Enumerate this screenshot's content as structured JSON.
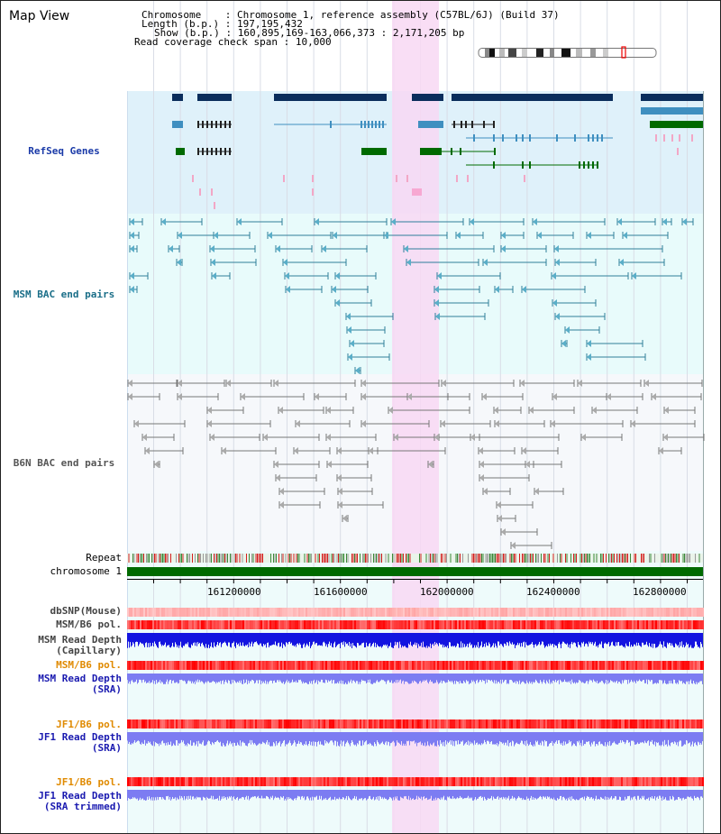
{
  "title": "Map View",
  "info": {
    "chromosome_key": "Chromosome",
    "chromosome_value": "Chromosome 1, reference assembly (C57BL/6J) (Build 37)",
    "length_key": "Length (b.p.)",
    "length_value": "197,195,432",
    "show_key": "Show (b.p.)",
    "show_value": "160,895,169-163,066,373 : 2,171,205 bp",
    "coverage_key": "Read coverage check span",
    "coverage_value": "10,000"
  },
  "tracks": {
    "refseq": "RefSeq Genes",
    "msm_bac": "MSM BAC end pairs",
    "b6n_bac": "B6N BAC end pairs",
    "repeat": "Repeat",
    "chromosome": "chromosome 1",
    "dbsnp": "dbSNP(Mouse)",
    "msm_b6_pol": "MSM/B6 pol.",
    "msm_depth_cap_1": "MSM Read Depth",
    "msm_depth_cap_2": "(Capillary)",
    "msm_b6_pol_2": "MSM/B6 pol.",
    "msm_depth_sra_1": "MSM Read Depth",
    "msm_depth_sra_2": "(SRA)",
    "jf1_b6_pol": "JF1/B6 pol.",
    "jf1_depth_sra_1": "JF1 Read Depth",
    "jf1_depth_sra_2": "(SRA)",
    "jf1_b6_pol_2": "JF1/B6 pol.",
    "jf1_depth_trim_1": "JF1 Read Depth",
    "jf1_depth_trim_2": "(SRA trimmed)"
  },
  "axis_ticks": [
    "161200000",
    "161600000",
    "162000000",
    "162400000",
    "162800000"
  ],
  "colors": {
    "refseq_bg": "#dff1fa",
    "msm_bac_bg": "#e8fbfb",
    "b6n_bg": "#f6f8fb",
    "highlight": "#f8d8f3",
    "gene_dark": "#0a2d5c",
    "gene_blue": "#3f8fc0",
    "gene_green": "#006a00",
    "label_blue": "#1a3aa8",
    "label_teal": "#1a6e88",
    "label_orange": "#e08a00",
    "depth_blue": "#1414e0",
    "depth_violet": "#7c7cf2",
    "pol_red": "#ee4444"
  }
}
